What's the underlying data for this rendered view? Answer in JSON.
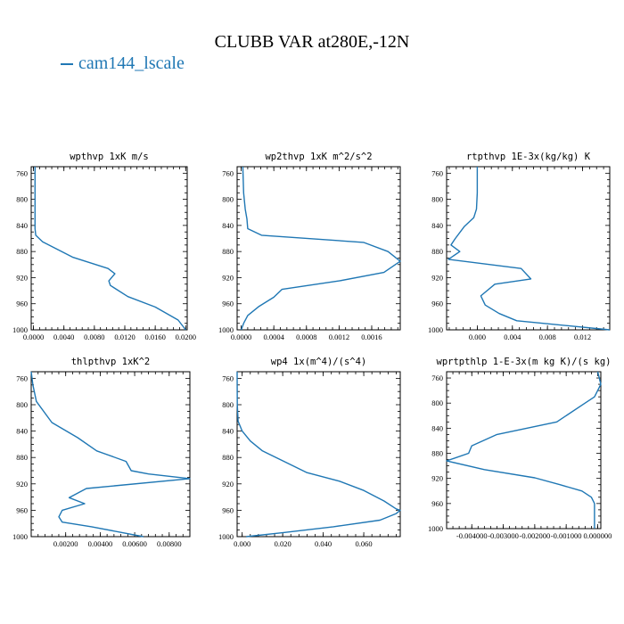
{
  "figure": {
    "title": "CLUBB VAR at280E,-12N",
    "legend": "cam144_lscale",
    "line_color": "#1f77b4"
  },
  "chart_data": [
    {
      "type": "line",
      "title": "wpthvp  1xK m/s",
      "xlim": [
        -0.0003,
        0.0202
      ],
      "ylim": [
        1000,
        750
      ],
      "xticks": [
        0.0,
        0.004,
        0.008,
        0.012,
        0.016,
        0.02
      ],
      "xtick_labels": [
        "0.0000",
        "0.0040",
        "0.0080",
        "0.0120",
        "0.0160",
        "0.0200"
      ],
      "yticks": [
        760,
        800,
        840,
        880,
        920,
        960,
        1000
      ],
      "ytick_labels": [
        "760",
        "800",
        "840",
        "880",
        "920",
        "960",
        "1000"
      ],
      "series": [
        {
          "x": [
            0.0002,
            0.0002,
            0.0002,
            0.0002,
            0.0002,
            0.0003,
            0.0012,
            0.0052,
            0.0098,
            0.0107,
            0.0099,
            0.0101,
            0.0124,
            0.016,
            0.019,
            0.02
          ],
          "y": [
            750,
            780,
            810,
            830,
            845,
            855,
            865,
            889,
            906,
            914,
            925,
            932,
            949,
            965,
            985,
            1000
          ]
        }
      ]
    },
    {
      "type": "line",
      "title": "wp2thvp  1xK m^2/s^2",
      "xlim": [
        -5e-05,
        0.00195
      ],
      "ylim": [
        1000,
        750
      ],
      "xticks": [
        0.0,
        0.0004,
        0.0008,
        0.0012,
        0.0016
      ],
      "xtick_labels": [
        "0.0000",
        "0.0004",
        "0.0008",
        "0.0012",
        "0.0016"
      ],
      "series": [
        {
          "x": [
            2e-05,
            3e-05,
            5e-05,
            7e-05,
            8e-05,
            0.00025,
            0.0015,
            0.0018,
            0.00195,
            0.00175,
            0.0012,
            0.0005,
            0.0004,
            0.00022,
            8e-05,
            3e-05,
            0.0
          ],
          "y": [
            750,
            790,
            815,
            830,
            845,
            855,
            866,
            880,
            895,
            912,
            925,
            938,
            950,
            964,
            978,
            990,
            1000
          ]
        }
      ]
    },
    {
      "type": "line",
      "title": "rtpthvp  1E-3x(kg/kg) K",
      "xlim": [
        -0.0035,
        0.0151
      ],
      "ylim": [
        1000,
        750
      ],
      "xticks": [
        0.0,
        0.004,
        0.008,
        0.012
      ],
      "xtick_labels": [
        "0.000",
        "0.004",
        "0.008",
        "0.012"
      ],
      "series": [
        {
          "x": [
            0.0,
            0.0,
            -0.0001,
            -0.0004,
            -0.0015,
            -0.0025,
            -0.003,
            -0.002,
            -0.0033,
            0.005,
            0.0061,
            0.002,
            0.0004,
            0.0009,
            0.0025,
            0.0045,
            0.0151
          ],
          "y": [
            750,
            790,
            815,
            828,
            842,
            860,
            870,
            880,
            892,
            906,
            922,
            930,
            948,
            962,
            975,
            986,
            1000
          ]
        }
      ]
    },
    {
      "type": "line",
      "title": "thlpthvp  1xK^2",
      "xlim": [
        0.0,
        0.0092
      ],
      "ylim": [
        1000,
        750
      ],
      "xticks": [
        0.002,
        0.004,
        0.006,
        0.008
      ],
      "xtick_labels": [
        "0.00200",
        "0.00400",
        "0.00600",
        "0.00800"
      ],
      "series": [
        {
          "x": [
            0.0,
            0.0001,
            0.0003,
            0.0012,
            0.0027,
            0.0038,
            0.0055,
            0.0058,
            0.0068,
            0.0092,
            0.0032,
            0.0022,
            0.0031,
            0.0018,
            0.0016,
            0.0018,
            0.0035,
            0.0065
          ],
          "y": [
            750,
            770,
            795,
            827,
            850,
            870,
            886,
            900,
            905,
            912,
            927,
            941,
            950,
            960,
            970,
            978,
            985,
            1000
          ]
        }
      ]
    },
    {
      "type": "line",
      "title": "wp4  1x(m^4)/(s^4)",
      "xlim": [
        -0.0025,
        0.078
      ],
      "ylim": [
        1000,
        750
      ],
      "xticks": [
        0.0,
        0.02,
        0.04,
        0.06
      ],
      "xtick_labels": [
        "0.000",
        "0.020",
        "0.040",
        "0.060"
      ],
      "series": [
        {
          "x": [
            -0.0025,
            -0.0024,
            -0.002,
            0.0,
            0.004,
            0.01,
            0.02,
            0.032,
            0.048,
            0.06,
            0.07,
            0.076,
            0.078,
            0.076,
            0.068,
            0.045,
            0.02,
            0.002
          ],
          "y": [
            750,
            800,
            825,
            840,
            855,
            870,
            885,
            903,
            916,
            930,
            946,
            958,
            960,
            965,
            975,
            985,
            994,
            1000
          ]
        }
      ]
    },
    {
      "type": "line",
      "title": "wprtpthlp  1-E-3x(m kg K)/(s kg)",
      "xlim": [
        -0.0048,
        0.0001
      ],
      "ylim": [
        1000,
        750
      ],
      "xticks": [
        -0.004,
        -0.003,
        -0.002,
        -0.001,
        0.0
      ],
      "xtick_labels": [
        "-0.004000",
        "-0.003000",
        "-0.002000",
        "-0.001000",
        "0.000000"
      ],
      "series": [
        {
          "x": [
            0.0,
            0.0001,
            -0.0001,
            -0.0004,
            -0.0013,
            -0.0032,
            -0.004,
            -0.0041,
            -0.0048,
            -0.0036,
            -0.002,
            -0.0012,
            -0.0005,
            -0.0002,
            -0.0001,
            -0.0001
          ],
          "y": [
            750,
            770,
            790,
            800,
            830,
            850,
            868,
            880,
            892,
            906,
            919,
            930,
            940,
            950,
            960,
            1000
          ]
        }
      ]
    }
  ]
}
